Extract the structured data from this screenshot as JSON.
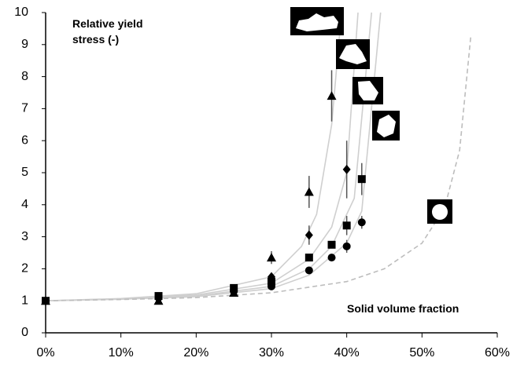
{
  "chart_data": {
    "type": "scatter",
    "y_label": "Relative yield stress (-)",
    "x_label": "Solid volume fraction",
    "xlim": [
      0,
      60
    ],
    "ylim": [
      0,
      10
    ],
    "xticks": [
      {
        "value": 0,
        "label": "0%"
      },
      {
        "value": 10,
        "label": "10%"
      },
      {
        "value": 20,
        "label": "20%"
      },
      {
        "value": 30,
        "label": "30%"
      },
      {
        "value": 40,
        "label": "40%"
      },
      {
        "value": 50,
        "label": "50%"
      },
      {
        "value": 60,
        "label": "60%"
      }
    ],
    "yticks": [
      0,
      1,
      2,
      3,
      4,
      5,
      6,
      7,
      8,
      9,
      10
    ],
    "series": [
      {
        "type": "line",
        "color": "#cfcfcf",
        "dashed": false,
        "x": [
          0,
          10,
          20,
          30,
          34,
          36,
          38,
          39.3
        ],
        "values": [
          1,
          1.07,
          1.22,
          1.75,
          2.7,
          3.7,
          6.5,
          10
        ]
      },
      {
        "type": "line",
        "color": "#cfcfcf",
        "dashed": false,
        "x": [
          0,
          10,
          20,
          30,
          35,
          38,
          40,
          41.5
        ],
        "values": [
          1,
          1.06,
          1.18,
          1.55,
          2.3,
          3.3,
          5,
          10
        ]
      },
      {
        "type": "line",
        "color": "#cfcfcf",
        "dashed": false,
        "x": [
          0,
          10,
          20,
          30,
          35,
          38,
          41,
          43.3
        ],
        "values": [
          1,
          1.05,
          1.15,
          1.45,
          2.0,
          2.7,
          4.2,
          10
        ]
      },
      {
        "type": "line",
        "color": "#cfcfcf",
        "dashed": false,
        "x": [
          0,
          10,
          20,
          30,
          35,
          40,
          42,
          44.5
        ],
        "values": [
          1,
          1.05,
          1.13,
          1.38,
          1.8,
          2.8,
          3.8,
          10
        ]
      },
      {
        "type": "line",
        "color": "#bdbdbd",
        "dashed": true,
        "x": [
          0,
          10,
          20,
          30,
          40,
          45,
          50,
          53,
          55,
          56.5
        ],
        "values": [
          1,
          1.04,
          1.1,
          1.25,
          1.6,
          2.0,
          2.8,
          3.9,
          5.7,
          9.3
        ]
      },
      {
        "type": "scatter",
        "marker": "triangle",
        "color": "#000000",
        "x": [
          0,
          15,
          25,
          30,
          35,
          38
        ],
        "values": [
          1,
          1.0,
          1.25,
          2.35,
          4.4,
          7.4
        ],
        "errors": [
          null,
          null,
          null,
          0.2,
          0.5,
          0.8
        ]
      },
      {
        "type": "scatter",
        "marker": "diamond",
        "color": "#000000",
        "x": [
          0,
          15,
          25,
          30,
          35,
          40
        ],
        "values": [
          1,
          1.1,
          1.35,
          1.75,
          3.05,
          5.1
        ],
        "errors": [
          null,
          null,
          null,
          null,
          0.3,
          0.9
        ]
      },
      {
        "type": "scatter",
        "marker": "square",
        "color": "#000000",
        "x": [
          0,
          15,
          25,
          30,
          35,
          38,
          40,
          42
        ],
        "values": [
          1,
          1.15,
          1.4,
          1.6,
          2.35,
          2.75,
          3.35,
          4.8
        ],
        "errors": [
          null,
          null,
          null,
          null,
          null,
          null,
          0.3,
          0.5
        ]
      },
      {
        "type": "scatter",
        "marker": "circle",
        "color": "#000000",
        "x": [
          0,
          15,
          25,
          30,
          35,
          38,
          40,
          42
        ],
        "values": [
          1,
          1.1,
          1.3,
          1.45,
          1.95,
          2.35,
          2.7,
          3.45
        ],
        "errors": [
          null,
          null,
          null,
          null,
          null,
          null,
          0.2,
          0.2
        ]
      }
    ]
  }
}
